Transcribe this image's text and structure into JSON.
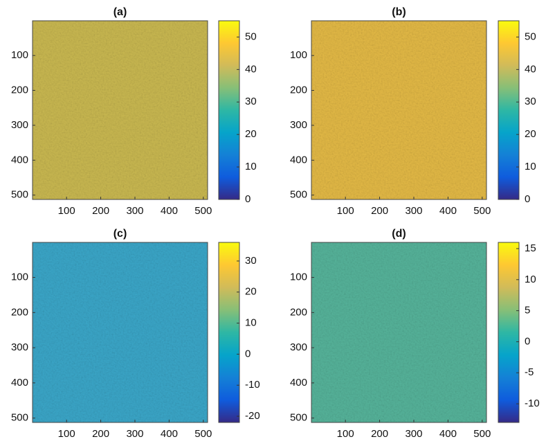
{
  "chart_data": [
    {
      "type": "image",
      "title": "(a)",
      "xlim": [
        0.5,
        512.5
      ],
      "ylim": [
        512.5,
        0.5
      ],
      "xticks": [
        100,
        200,
        300,
        400,
        500
      ],
      "yticks": [
        100,
        200,
        300,
        400,
        500
      ],
      "image_color": "#c9b850",
      "clim": [
        0,
        55
      ],
      "cticks": [
        0,
        10,
        20,
        30,
        40,
        50
      ],
      "colormap": [
        "#352a87",
        "#0f5cdd",
        "#1481d6",
        "#06a4ca",
        "#2eb7a4",
        "#87bf77",
        "#d1bb59",
        "#fec832",
        "#f9fb0e"
      ]
    },
    {
      "type": "image",
      "title": "(b)",
      "xlim": [
        0.5,
        512.5
      ],
      "ylim": [
        512.5,
        0.5
      ],
      "xticks": [
        100,
        200,
        300,
        400,
        500
      ],
      "yticks": [
        100,
        200,
        300,
        400,
        500
      ],
      "image_color": "#e3b945",
      "clim": [
        0,
        55
      ],
      "cticks": [
        0,
        10,
        20,
        30,
        40,
        50
      ],
      "colormap": [
        "#352a87",
        "#0f5cdd",
        "#1481d6",
        "#06a4ca",
        "#2eb7a4",
        "#87bf77",
        "#d1bb59",
        "#fec832",
        "#f9fb0e"
      ]
    },
    {
      "type": "image",
      "title": "(c)",
      "xlim": [
        0.5,
        512.5
      ],
      "ylim": [
        512.5,
        0.5
      ],
      "xticks": [
        100,
        200,
        300,
        400,
        500
      ],
      "yticks": [
        100,
        200,
        300,
        400,
        500
      ],
      "image_color": "#3aa6c8",
      "clim": [
        -22,
        36
      ],
      "cticks": [
        -20,
        -10,
        0,
        10,
        20,
        30
      ],
      "colormap": [
        "#352a87",
        "#0f5cdd",
        "#1481d6",
        "#06a4ca",
        "#2eb7a4",
        "#87bf77",
        "#d1bb59",
        "#fec832",
        "#f9fb0e"
      ]
    },
    {
      "type": "image",
      "title": "(d)",
      "xlim": [
        0.5,
        512.5
      ],
      "ylim": [
        512.5,
        0.5
      ],
      "xticks": [
        100,
        200,
        300,
        400,
        500
      ],
      "yticks": [
        100,
        200,
        300,
        400,
        500
      ],
      "image_color": "#55b39a",
      "clim": [
        -13,
        16
      ],
      "cticks": [
        -10,
        -5,
        0,
        5,
        10,
        15
      ],
      "colormap": [
        "#352a87",
        "#0f5cdd",
        "#1481d6",
        "#06a4ca",
        "#2eb7a4",
        "#87bf77",
        "#d1bb59",
        "#fec832",
        "#f9fb0e"
      ]
    }
  ]
}
